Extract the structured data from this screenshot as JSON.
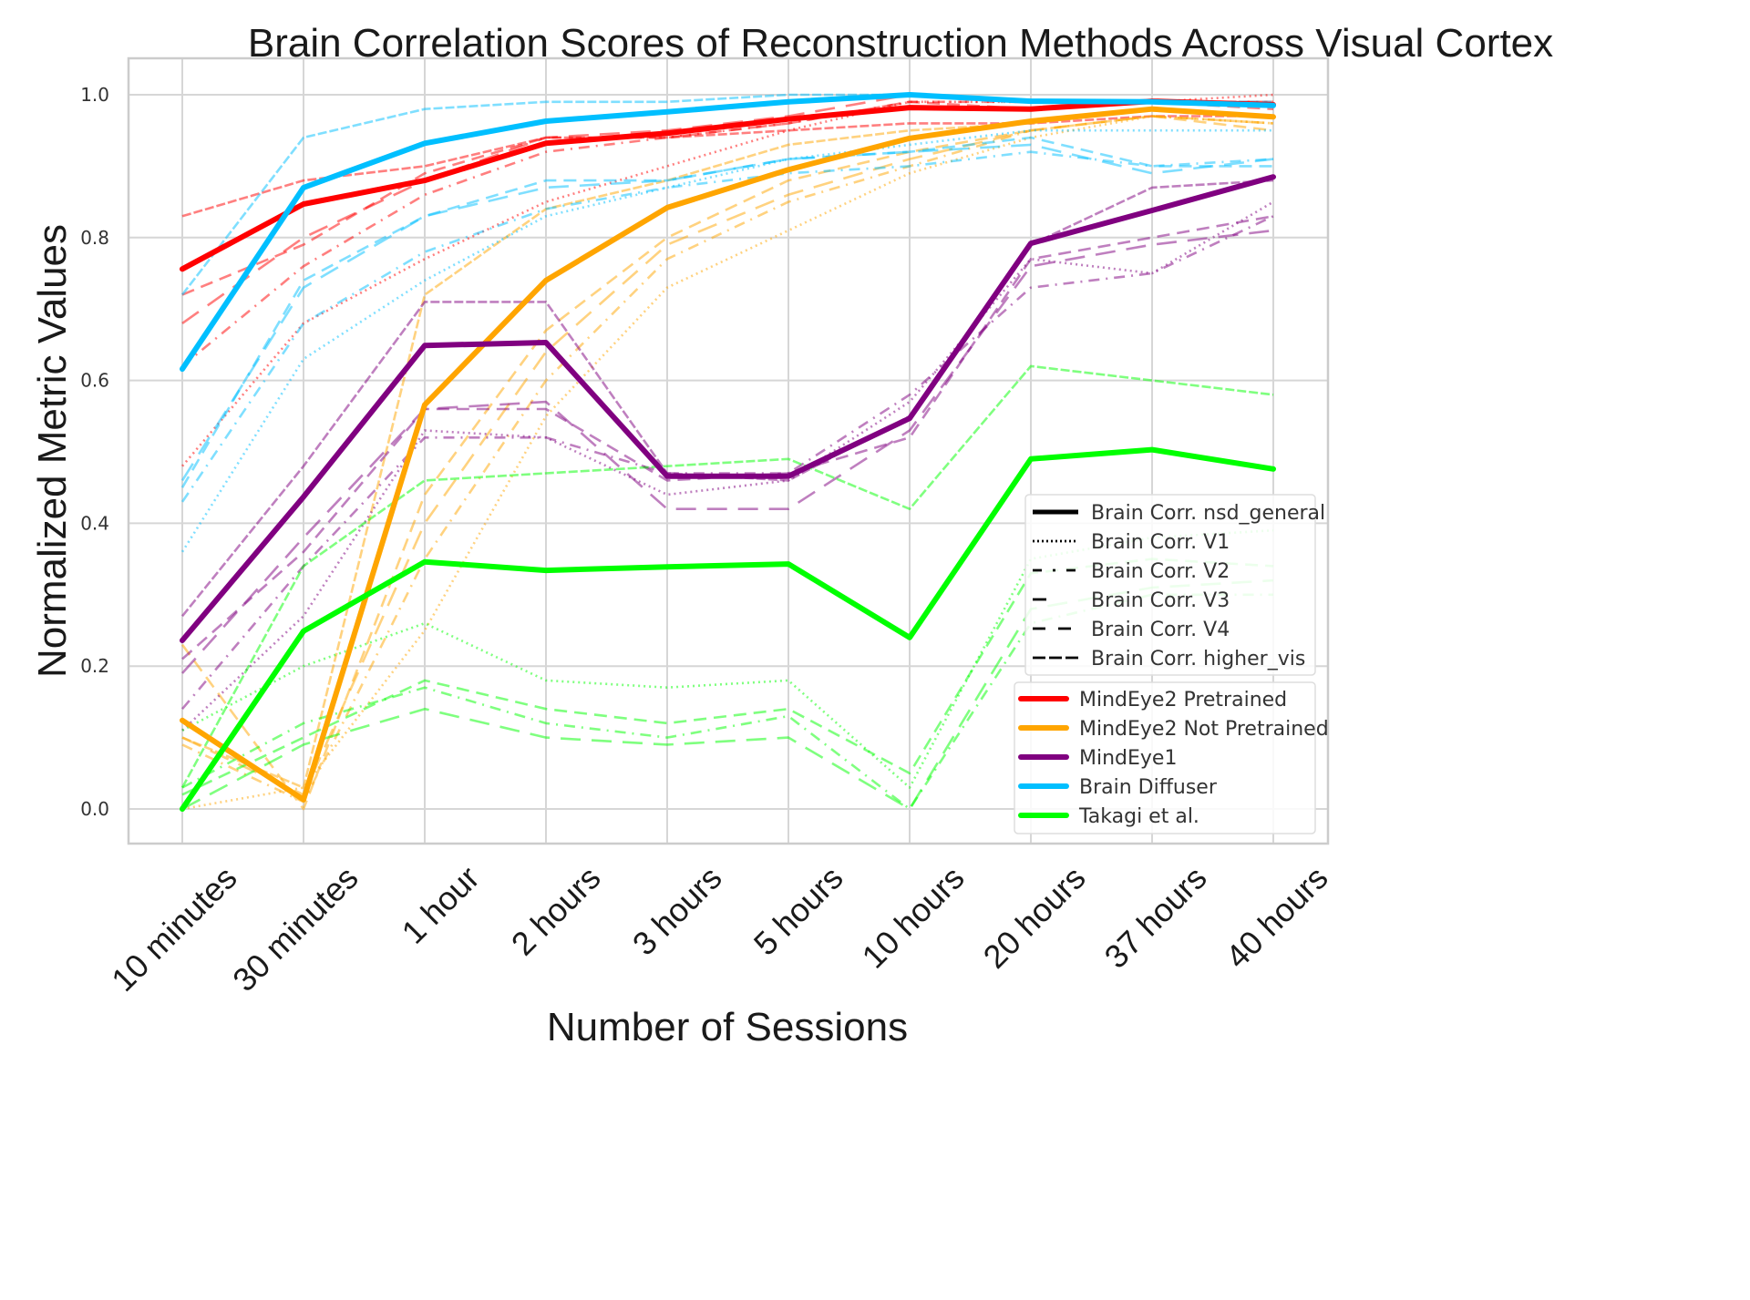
{
  "chart_data": {
    "type": "line",
    "title": "Brain Correlation Scores of Reconstruction Methods Across Visual Cortex",
    "xlabel": "Number of Sessions",
    "ylabel": "Normalized Metric Values",
    "ylim": [
      -0.05,
      1.05
    ],
    "yticks": [
      0.0,
      0.2,
      0.4,
      0.6,
      0.8,
      1.0
    ],
    "ytick_labels": [
      "0.0",
      "0.2",
      "0.4",
      "0.6",
      "0.8",
      "1.0"
    ],
    "grid": true,
    "categories": [
      "10 minutes",
      "30 minutes",
      "1 hour",
      "2 hours",
      "3 hours",
      "5 hours",
      "10 hours",
      "20 hours",
      "37 hours",
      "40 hours"
    ],
    "style_legend": {
      "placement": "right-center",
      "entries": [
        {
          "label": "Brain Corr. nsd_general",
          "style": "solid"
        },
        {
          "label": "Brain Corr. V1",
          "style": "dotted"
        },
        {
          "label": "Brain Corr. V2",
          "style": "dashdot"
        },
        {
          "label": "Brain Corr. V3",
          "style": "longdash"
        },
        {
          "label": "Brain Corr. V4",
          "style": "dashed"
        },
        {
          "label": "Brain Corr. higher_vis",
          "style": "densedash"
        }
      ]
    },
    "method_legend": {
      "placement": "lower-right",
      "entries": [
        {
          "label": "MindEye2 Pretrained",
          "color": "#ff0000"
        },
        {
          "label": "MindEye2 Not Pretrained",
          "color": "#ffa500"
        },
        {
          "label": "MindEye1",
          "color": "#800080"
        },
        {
          "label": "Brain Diffuser",
          "color": "#00bfff"
        },
        {
          "label": "Takagi et al.",
          "color": "#00ff00"
        }
      ]
    },
    "series": [
      {
        "method": "MindEye2 Pretrained",
        "metric": "Brain Corr. nsd_general",
        "color": "#ff0000",
        "style": "solid",
        "values": [
          0.756,
          0.847,
          0.88,
          0.932,
          0.946,
          0.966,
          0.982,
          0.98,
          0.991,
          0.986
        ]
      },
      {
        "method": "MindEye2 Pretrained",
        "metric": "Brain Corr. V1",
        "color": "#ff0000",
        "style": "dotted",
        "values": [
          0.48,
          0.68,
          0.77,
          0.85,
          0.9,
          0.95,
          0.99,
          0.99,
          0.99,
          1.0
        ]
      },
      {
        "method": "MindEye2 Pretrained",
        "metric": "Brain Corr. V2",
        "color": "#ff0000",
        "style": "dashdot",
        "values": [
          0.62,
          0.76,
          0.86,
          0.92,
          0.94,
          0.96,
          0.99,
          0.99,
          0.99,
          0.99
        ]
      },
      {
        "method": "MindEye2 Pretrained",
        "metric": "Brain Corr. V3",
        "color": "#ff0000",
        "style": "longdash",
        "values": [
          0.68,
          0.8,
          0.88,
          0.94,
          0.95,
          0.97,
          1.0,
          0.99,
          0.99,
          0.99
        ]
      },
      {
        "method": "MindEye2 Pretrained",
        "metric": "Brain Corr. V4",
        "color": "#ff0000",
        "style": "dashed",
        "values": [
          0.72,
          0.79,
          0.89,
          0.94,
          0.94,
          0.96,
          0.99,
          0.98,
          0.99,
          0.98
        ]
      },
      {
        "method": "MindEye2 Pretrained",
        "metric": "Brain Corr. higher_vis",
        "color": "#ff0000",
        "style": "densedash",
        "values": [
          0.83,
          0.88,
          0.9,
          0.94,
          0.94,
          0.95,
          0.96,
          0.96,
          0.97,
          0.97
        ]
      },
      {
        "method": "MindEye2 Not Pretrained",
        "metric": "Brain Corr. nsd_general",
        "color": "#ffa500",
        "style": "solid",
        "values": [
          0.124,
          0.013,
          0.566,
          0.74,
          0.842,
          0.895,
          0.939,
          0.963,
          0.98,
          0.969
        ]
      },
      {
        "method": "MindEye2 Not Pretrained",
        "metric": "Brain Corr. V1",
        "color": "#ffa500",
        "style": "dotted",
        "values": [
          0.0,
          0.03,
          0.25,
          0.55,
          0.73,
          0.81,
          0.89,
          0.94,
          0.97,
          0.96
        ]
      },
      {
        "method": "MindEye2 Not Pretrained",
        "metric": "Brain Corr. V2",
        "color": "#ffa500",
        "style": "dashdot",
        "values": [
          0.09,
          0.01,
          0.35,
          0.6,
          0.77,
          0.85,
          0.9,
          0.95,
          0.97,
          0.96
        ]
      },
      {
        "method": "MindEye2 Not Pretrained",
        "metric": "Brain Corr. V3",
        "color": "#ffa500",
        "style": "longdash",
        "values": [
          0.1,
          0.02,
          0.4,
          0.64,
          0.79,
          0.86,
          0.91,
          0.95,
          0.97,
          0.96
        ]
      },
      {
        "method": "MindEye2 Not Pretrained",
        "metric": "Brain Corr. V4",
        "color": "#ffa500",
        "style": "dashed",
        "values": [
          0.23,
          0.0,
          0.44,
          0.67,
          0.8,
          0.88,
          0.92,
          0.95,
          0.97,
          0.95
        ]
      },
      {
        "method": "MindEye2 Not Pretrained",
        "metric": "Brain Corr. higher_vis",
        "color": "#ffa500",
        "style": "densedash",
        "values": [
          0.1,
          0.03,
          0.72,
          0.84,
          0.88,
          0.93,
          0.95,
          0.96,
          0.98,
          0.97
        ]
      },
      {
        "method": "MindEye1",
        "metric": "Brain Corr. nsd_general",
        "color": "#800080",
        "style": "solid",
        "values": [
          0.236,
          0.437,
          0.649,
          0.653,
          0.466,
          0.466,
          0.547,
          0.792,
          0.838,
          0.885
        ]
      },
      {
        "method": "MindEye1",
        "metric": "Brain Corr. V1",
        "color": "#800080",
        "style": "dotted",
        "values": [
          0.11,
          0.27,
          0.53,
          0.52,
          0.44,
          0.46,
          0.57,
          0.77,
          0.75,
          0.85
        ]
      },
      {
        "method": "MindEye1",
        "metric": "Brain Corr. V2",
        "color": "#800080",
        "style": "dashdot",
        "values": [
          0.14,
          0.34,
          0.52,
          0.52,
          0.47,
          0.47,
          0.58,
          0.73,
          0.75,
          0.83
        ]
      },
      {
        "method": "MindEye1",
        "metric": "Brain Corr. V3",
        "color": "#800080",
        "style": "longdash",
        "values": [
          0.19,
          0.38,
          0.56,
          0.57,
          0.42,
          0.42,
          0.53,
          0.76,
          0.79,
          0.81
        ]
      },
      {
        "method": "MindEye1",
        "metric": "Brain Corr. V4",
        "color": "#800080",
        "style": "dashed",
        "values": [
          0.21,
          0.36,
          0.56,
          0.56,
          0.46,
          0.47,
          0.52,
          0.77,
          0.8,
          0.83
        ]
      },
      {
        "method": "MindEye1",
        "metric": "Brain Corr. higher_vis",
        "color": "#800080",
        "style": "densedash",
        "values": [
          0.27,
          0.48,
          0.71,
          0.71,
          0.47,
          0.46,
          0.55,
          0.79,
          0.87,
          0.88
        ]
      },
      {
        "method": "Brain Diffuser",
        "metric": "Brain Corr. nsd_general",
        "color": "#00bfff",
        "style": "solid",
        "values": [
          0.616,
          0.87,
          0.932,
          0.963,
          0.976,
          0.99,
          1.0,
          0.991,
          0.99,
          0.985
        ]
      },
      {
        "method": "Brain Diffuser",
        "metric": "Brain Corr. V1",
        "color": "#00bfff",
        "style": "dotted",
        "values": [
          0.36,
          0.63,
          0.74,
          0.83,
          0.87,
          0.91,
          0.93,
          0.95,
          0.95,
          0.95
        ]
      },
      {
        "method": "Brain Diffuser",
        "metric": "Brain Corr. V2",
        "color": "#00bfff",
        "style": "dashdot",
        "values": [
          0.43,
          0.68,
          0.78,
          0.84,
          0.87,
          0.89,
          0.9,
          0.92,
          0.9,
          0.91
        ]
      },
      {
        "method": "Brain Diffuser",
        "metric": "Brain Corr. V3",
        "color": "#00bfff",
        "style": "longdash",
        "values": [
          0.46,
          0.73,
          0.83,
          0.87,
          0.88,
          0.91,
          0.92,
          0.93,
          0.89,
          0.91
        ]
      },
      {
        "method": "Brain Diffuser",
        "metric": "Brain Corr. V4",
        "color": "#00bfff",
        "style": "dashed",
        "values": [
          0.45,
          0.74,
          0.83,
          0.88,
          0.88,
          0.91,
          0.92,
          0.94,
          0.9,
          0.9
        ]
      },
      {
        "method": "Brain Diffuser",
        "metric": "Brain Corr. higher_vis",
        "color": "#00bfff",
        "style": "densedash",
        "values": [
          0.72,
          0.94,
          0.98,
          0.99,
          0.99,
          1.0,
          1.0,
          0.99,
          0.99,
          0.99
        ]
      },
      {
        "method": "Takagi et al.",
        "metric": "Brain Corr. nsd_general",
        "color": "#00ff00",
        "style": "solid",
        "values": [
          0.0,
          0.249,
          0.346,
          0.334,
          0.339,
          0.343,
          0.24,
          0.49,
          0.503,
          0.476
        ]
      },
      {
        "method": "Takagi et al.",
        "metric": "Brain Corr. V1",
        "color": "#00ff00",
        "style": "dotted",
        "values": [
          0.11,
          0.2,
          0.26,
          0.18,
          0.17,
          0.18,
          0.03,
          0.35,
          0.38,
          0.39
        ]
      },
      {
        "method": "Takagi et al.",
        "metric": "Brain Corr. V2",
        "color": "#00ff00",
        "style": "dashdot",
        "values": [
          0.03,
          0.12,
          0.17,
          0.12,
          0.1,
          0.13,
          0.0,
          0.26,
          0.3,
          0.3
        ]
      },
      {
        "method": "Takagi et al.",
        "metric": "Brain Corr. V3",
        "color": "#00ff00",
        "style": "longdash",
        "values": [
          0.0,
          0.09,
          0.14,
          0.1,
          0.09,
          0.1,
          0.0,
          0.28,
          0.31,
          0.32
        ]
      },
      {
        "method": "Takagi et al.",
        "metric": "Brain Corr. V4",
        "color": "#00ff00",
        "style": "dashed",
        "values": [
          0.02,
          0.1,
          0.18,
          0.14,
          0.12,
          0.14,
          0.05,
          0.33,
          0.35,
          0.34
        ]
      },
      {
        "method": "Takagi et al.",
        "metric": "Brain Corr. higher_vis",
        "color": "#00ff00",
        "style": "densedash",
        "values": [
          0.03,
          0.34,
          0.46,
          0.47,
          0.48,
          0.49,
          0.42,
          0.62,
          0.6,
          0.58
        ]
      }
    ]
  }
}
